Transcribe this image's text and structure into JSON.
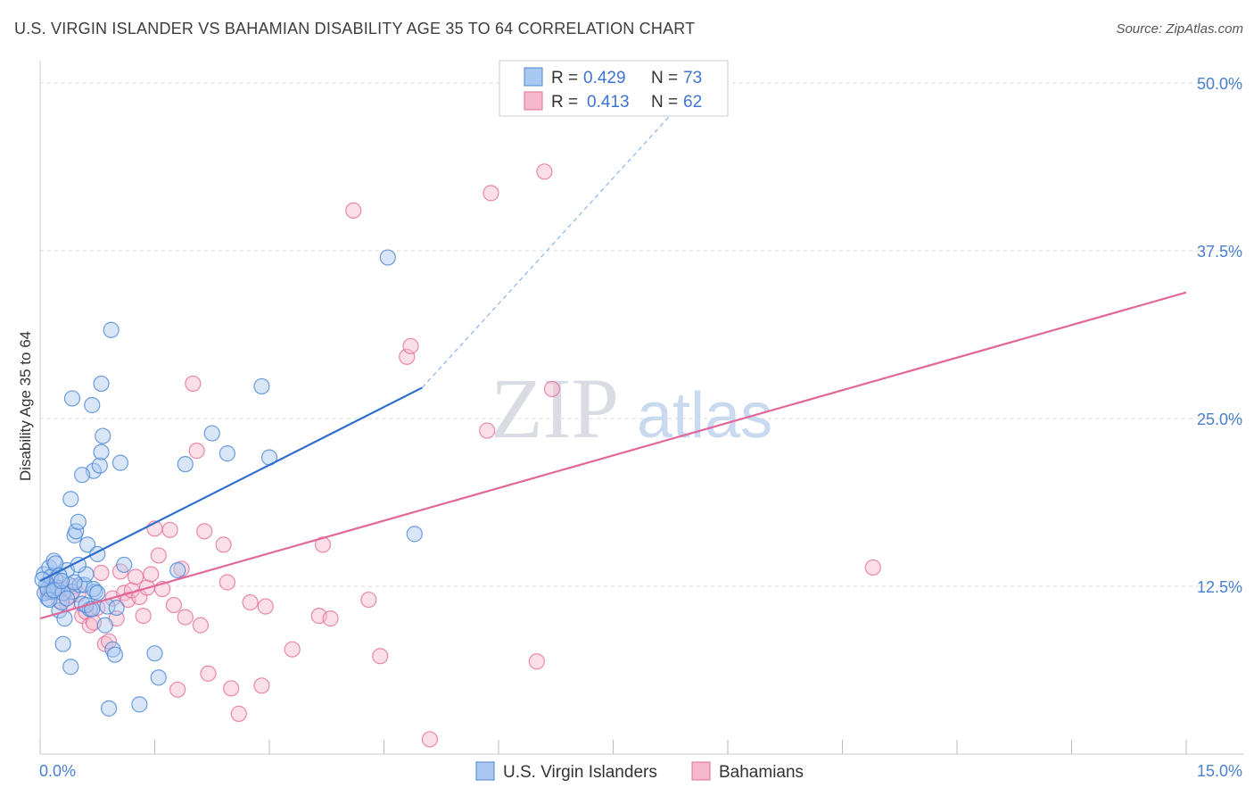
{
  "header": {
    "title": "U.S. VIRGIN ISLANDER VS BAHAMIAN DISABILITY AGE 35 TO 64 CORRELATION CHART",
    "source": "Source: ZipAtlas.com"
  },
  "colors": {
    "blue": "#4a86d6",
    "blue_fill": "#a9c8ef",
    "pink": "#e56d98",
    "pink_fill": "#f6b8cc",
    "axis_text": "#4a7fd0",
    "grid": "#d8d8d8"
  },
  "watermark": {
    "zip": "ZIP",
    "atlas": "atlas"
  },
  "legend": {
    "items": [
      {
        "r_label": "R =",
        "r_value": "0.429",
        "n_label": "N =",
        "n_value": "73"
      },
      {
        "r_label": "R =",
        "r_value": "0.413",
        "n_label": "N =",
        "n_value": "62"
      }
    ]
  },
  "bottom_legend": {
    "blue_label": "U.S. Virgin Islanders",
    "pink_label": "Bahamians"
  },
  "chart_data": {
    "type": "scatter",
    "title": "U.S. VIRGIN ISLANDER VS BAHAMIAN DISABILITY AGE 35 TO 64 CORRELATION CHART",
    "xlabel": "",
    "ylabel": "Disability Age 35 to 64",
    "xlim": [
      0,
      15
    ],
    "ylim": [
      0,
      51
    ],
    "x_tick_labels": [
      "0.0%",
      "15.0%"
    ],
    "y_ticks": [
      12.5,
      25.0,
      37.5,
      50.0
    ],
    "y_tick_labels": [
      "12.5%",
      "25.0%",
      "37.5%",
      "50.0%"
    ],
    "grid": true,
    "series": [
      {
        "name": "U.S. Virgin Islanders",
        "color": "#4a86d6",
        "r": 0.429,
        "n": 73,
        "trend": {
          "x0": 0.0,
          "y0": 12.9,
          "x1": 5.0,
          "y1": 27.3,
          "dash_to_x": 8.6,
          "dash_to_y": 49.8
        },
        "points": [
          [
            0.05,
            13.4
          ],
          [
            0.08,
            12.6
          ],
          [
            0.1,
            11.6
          ],
          [
            0.12,
            13.9
          ],
          [
            0.15,
            12.1
          ],
          [
            0.18,
            14.4
          ],
          [
            0.2,
            13.0
          ],
          [
            0.22,
            12.4
          ],
          [
            0.25,
            10.7
          ],
          [
            0.28,
            11.3
          ],
          [
            0.3,
            8.2
          ],
          [
            0.32,
            10.1
          ],
          [
            0.35,
            13.7
          ],
          [
            0.38,
            12.6
          ],
          [
            0.4,
            6.5
          ],
          [
            0.42,
            12.1
          ],
          [
            0.45,
            16.3
          ],
          [
            0.47,
            16.6
          ],
          [
            0.5,
            17.3
          ],
          [
            0.52,
            12.6
          ],
          [
            0.55,
            11.2
          ],
          [
            0.58,
            12.6
          ],
          [
            0.6,
            13.4
          ],
          [
            0.62,
            15.6
          ],
          [
            0.65,
            10.8
          ],
          [
            0.68,
            26.0
          ],
          [
            0.7,
            21.1
          ],
          [
            0.72,
            12.1
          ],
          [
            0.75,
            14.9
          ],
          [
            0.78,
            21.5
          ],
          [
            0.8,
            27.6
          ],
          [
            0.82,
            23.7
          ],
          [
            0.85,
            9.6
          ],
          [
            0.88,
            11.0
          ],
          [
            0.9,
            3.4
          ],
          [
            0.93,
            31.6
          ],
          [
            0.95,
            7.8
          ],
          [
            0.98,
            7.4
          ],
          [
            1.0,
            10.9
          ],
          [
            1.05,
            21.7
          ],
          [
            1.1,
            14.1
          ],
          [
            1.3,
            3.7
          ],
          [
            1.5,
            7.5
          ],
          [
            1.55,
            5.7
          ],
          [
            1.8,
            13.7
          ],
          [
            1.9,
            21.6
          ],
          [
            2.25,
            23.9
          ],
          [
            2.45,
            22.4
          ],
          [
            2.9,
            27.4
          ],
          [
            3.0,
            22.1
          ],
          [
            4.55,
            37.0
          ],
          [
            4.9,
            16.4
          ],
          [
            0.06,
            12.0
          ],
          [
            0.1,
            12.3
          ],
          [
            0.14,
            13.2
          ],
          [
            0.2,
            14.2
          ],
          [
            0.25,
            13.3
          ],
          [
            0.3,
            12.0
          ],
          [
            0.35,
            11.6
          ],
          [
            0.4,
            19.0
          ],
          [
            0.45,
            12.8
          ],
          [
            0.55,
            20.8
          ],
          [
            0.6,
            11.1
          ],
          [
            0.68,
            10.8
          ],
          [
            0.7,
            12.3
          ],
          [
            0.8,
            22.5
          ],
          [
            0.03,
            13.0
          ],
          [
            0.12,
            11.5
          ],
          [
            0.18,
            12.2
          ],
          [
            0.28,
            12.9
          ],
          [
            0.42,
            26.5
          ],
          [
            0.5,
            14.1
          ],
          [
            0.75,
            12.0
          ]
        ]
      },
      {
        "name": "Bahamians",
        "color": "#e56d98",
        "r": 0.413,
        "n": 62,
        "trend": {
          "x0": 0.0,
          "y0": 10.1,
          "x1": 15.0,
          "y1": 34.4
        },
        "points": [
          [
            0.1,
            12.1
          ],
          [
            0.15,
            12.5
          ],
          [
            0.2,
            13.0
          ],
          [
            0.25,
            11.4
          ],
          [
            0.3,
            12.3
          ],
          [
            0.35,
            11.2
          ],
          [
            0.4,
            11.8
          ],
          [
            0.45,
            12.5
          ],
          [
            0.5,
            11.9
          ],
          [
            0.55,
            10.3
          ],
          [
            0.6,
            10.6
          ],
          [
            0.65,
            9.6
          ],
          [
            0.7,
            9.8
          ],
          [
            0.75,
            10.9
          ],
          [
            0.8,
            13.5
          ],
          [
            0.85,
            8.2
          ],
          [
            0.9,
            8.4
          ],
          [
            0.95,
            11.6
          ],
          [
            1.0,
            10.1
          ],
          [
            1.05,
            13.6
          ],
          [
            1.1,
            12.0
          ],
          [
            1.15,
            11.5
          ],
          [
            1.2,
            12.2
          ],
          [
            1.25,
            13.2
          ],
          [
            1.3,
            11.7
          ],
          [
            1.35,
            10.3
          ],
          [
            1.4,
            12.4
          ],
          [
            1.45,
            13.4
          ],
          [
            1.5,
            16.8
          ],
          [
            1.55,
            14.8
          ],
          [
            1.6,
            12.3
          ],
          [
            1.7,
            16.7
          ],
          [
            1.75,
            11.1
          ],
          [
            1.8,
            4.8
          ],
          [
            1.85,
            13.8
          ],
          [
            1.9,
            10.2
          ],
          [
            2.0,
            27.6
          ],
          [
            2.05,
            22.6
          ],
          [
            2.1,
            9.6
          ],
          [
            2.15,
            16.6
          ],
          [
            2.2,
            6.0
          ],
          [
            2.4,
            15.6
          ],
          [
            2.45,
            12.8
          ],
          [
            2.5,
            4.9
          ],
          [
            2.6,
            3.0
          ],
          [
            2.75,
            11.3
          ],
          [
            2.9,
            5.1
          ],
          [
            2.95,
            11.0
          ],
          [
            3.3,
            7.8
          ],
          [
            3.7,
            15.6
          ],
          [
            3.65,
            10.3
          ],
          [
            3.8,
            10.1
          ],
          [
            4.3,
            11.5
          ],
          [
            4.45,
            7.3
          ],
          [
            4.8,
            29.6
          ],
          [
            4.85,
            30.4
          ],
          [
            5.1,
            1.1
          ],
          [
            5.85,
            24.1
          ],
          [
            5.9,
            41.8
          ],
          [
            6.5,
            6.9
          ],
          [
            6.6,
            43.4
          ],
          [
            6.7,
            27.2
          ]
        ]
      }
    ],
    "extra_outlier": {
      "series": "Bahamians",
      "x": 4.1,
      "y": 40.5
    },
    "extra_outlier_2": {
      "series": "Bahamians",
      "x": 10.9,
      "y": 13.9
    }
  }
}
